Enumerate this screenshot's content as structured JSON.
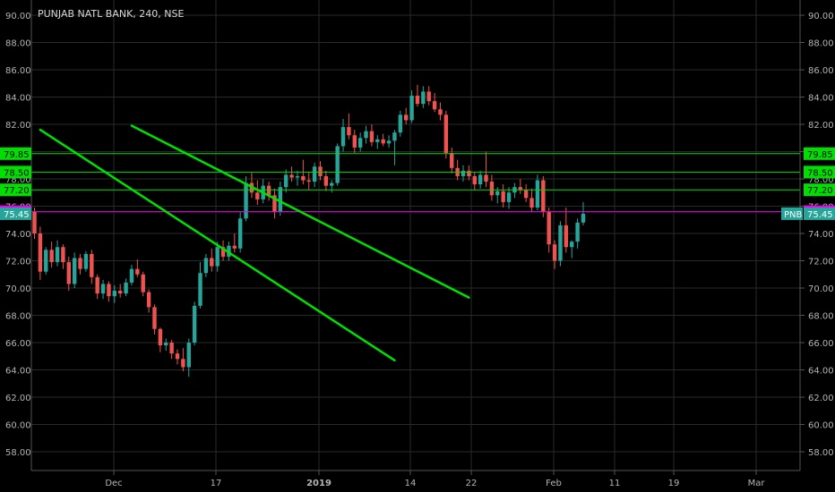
{
  "header": {
    "title": "PUNJAB NATL BANK, 240, NSE"
  },
  "y_axis": {
    "ticks": [
      "58.00",
      "60.00",
      "62.00",
      "64.00",
      "66.00",
      "68.00",
      "70.00",
      "72.00",
      "74.00",
      "76.00",
      "78.00",
      "80.00",
      "82.00",
      "84.00",
      "86.00",
      "88.00",
      "90.00"
    ]
  },
  "x_axis": {
    "labels": [
      "Dec",
      "17",
      "2019",
      "14",
      "22",
      "Feb",
      "11",
      "19",
      "Mar"
    ]
  },
  "levels": [
    {
      "value": 79.85,
      "label": "79.85",
      "color": "#00e000",
      "text_color": "#000000"
    },
    {
      "value": 78.5,
      "label": "78.50",
      "color": "#00e000",
      "text_color": "#000000"
    },
    {
      "value": 77.2,
      "label": "77.20",
      "color": "#00e000",
      "text_color": "#000000"
    },
    {
      "value": 75.6,
      "label": "75.60",
      "color": "#ee00ee",
      "text_color": "#000000"
    },
    {
      "value": 75.45,
      "label": "75.45",
      "color": "#26a69a",
      "text_color": "#ffffff"
    }
  ],
  "price_badge": {
    "symbol": "PNB",
    "value": "75.45",
    "color": "#26a69a"
  },
  "colors": {
    "up": "#26a69a",
    "down": "#ef5350",
    "channel": "#00e000",
    "grid": "#2a2a2a"
  },
  "chart_data": {
    "type": "candlestick",
    "title": "PUNJAB NATL BANK, 240, NSE",
    "ylim": [
      57,
      91
    ],
    "channel_lines": [
      {
        "from": {
          "x": 1,
          "y": 81.6
        },
        "to": {
          "x": 63,
          "y": 64.7
        }
      },
      {
        "from": {
          "x": 17,
          "y": 81.9
        },
        "to": {
          "x": 76,
          "y": 69.3
        }
      }
    ],
    "candles": [
      {
        "o": 75.6,
        "h": 75.9,
        "l": 73.6,
        "c": 74.0
      },
      {
        "o": 74.0,
        "h": 74.5,
        "l": 70.6,
        "c": 71.2
      },
      {
        "o": 71.2,
        "h": 73.0,
        "l": 71.0,
        "c": 72.8
      },
      {
        "o": 72.8,
        "h": 73.4,
        "l": 71.5,
        "c": 71.9
      },
      {
        "o": 71.9,
        "h": 73.5,
        "l": 71.6,
        "c": 73.0
      },
      {
        "o": 73.0,
        "h": 73.2,
        "l": 71.4,
        "c": 71.9
      },
      {
        "o": 71.9,
        "h": 72.3,
        "l": 69.8,
        "c": 70.3
      },
      {
        "o": 70.3,
        "h": 72.6,
        "l": 70.0,
        "c": 72.2
      },
      {
        "o": 72.2,
        "h": 72.5,
        "l": 71.0,
        "c": 71.4
      },
      {
        "o": 71.4,
        "h": 72.7,
        "l": 71.2,
        "c": 72.5
      },
      {
        "o": 72.5,
        "h": 72.8,
        "l": 70.3,
        "c": 70.8
      },
      {
        "o": 70.8,
        "h": 71.0,
        "l": 69.2,
        "c": 69.6
      },
      {
        "o": 69.6,
        "h": 70.6,
        "l": 69.2,
        "c": 70.3
      },
      {
        "o": 70.3,
        "h": 70.5,
        "l": 69.0,
        "c": 69.4
      },
      {
        "o": 69.4,
        "h": 70.2,
        "l": 68.9,
        "c": 69.8
      },
      {
        "o": 69.8,
        "h": 70.3,
        "l": 69.3,
        "c": 69.6
      },
      {
        "o": 69.6,
        "h": 70.7,
        "l": 69.4,
        "c": 70.4
      },
      {
        "o": 70.4,
        "h": 71.7,
        "l": 70.2,
        "c": 71.4
      },
      {
        "o": 71.4,
        "h": 72.1,
        "l": 70.8,
        "c": 71.0
      },
      {
        "o": 71.0,
        "h": 71.2,
        "l": 69.4,
        "c": 69.7
      },
      {
        "o": 69.7,
        "h": 69.9,
        "l": 68.2,
        "c": 68.6
      },
      {
        "o": 68.6,
        "h": 68.8,
        "l": 66.6,
        "c": 67.0
      },
      {
        "o": 67.0,
        "h": 67.1,
        "l": 65.3,
        "c": 65.8
      },
      {
        "o": 65.8,
        "h": 66.3,
        "l": 65.4,
        "c": 66.0
      },
      {
        "o": 66.0,
        "h": 66.2,
        "l": 64.8,
        "c": 65.2
      },
      {
        "o": 65.2,
        "h": 65.5,
        "l": 64.4,
        "c": 64.8
      },
      {
        "o": 64.8,
        "h": 65.6,
        "l": 63.9,
        "c": 64.2
      },
      {
        "o": 64.2,
        "h": 66.3,
        "l": 63.5,
        "c": 66.0
      },
      {
        "o": 66.0,
        "h": 69.0,
        "l": 65.8,
        "c": 68.7
      },
      {
        "o": 68.7,
        "h": 71.9,
        "l": 68.5,
        "c": 71.1
      },
      {
        "o": 71.1,
        "h": 72.5,
        "l": 70.8,
        "c": 72.2
      },
      {
        "o": 72.2,
        "h": 72.9,
        "l": 71.2,
        "c": 71.6
      },
      {
        "o": 71.6,
        "h": 73.4,
        "l": 71.2,
        "c": 73.0
      },
      {
        "o": 73.0,
        "h": 73.5,
        "l": 72.0,
        "c": 72.3
      },
      {
        "o": 72.3,
        "h": 73.4,
        "l": 72.0,
        "c": 73.1
      },
      {
        "o": 73.1,
        "h": 74.0,
        "l": 72.6,
        "c": 72.9
      },
      {
        "o": 72.9,
        "h": 75.6,
        "l": 72.6,
        "c": 75.1
      },
      {
        "o": 75.1,
        "h": 78.2,
        "l": 74.9,
        "c": 77.7
      },
      {
        "o": 77.7,
        "h": 78.5,
        "l": 76.6,
        "c": 77.0
      },
      {
        "o": 77.0,
        "h": 77.9,
        "l": 76.1,
        "c": 76.5
      },
      {
        "o": 76.5,
        "h": 78.0,
        "l": 76.2,
        "c": 77.5
      },
      {
        "o": 77.5,
        "h": 77.8,
        "l": 76.4,
        "c": 76.8
      },
      {
        "o": 76.8,
        "h": 77.3,
        "l": 75.1,
        "c": 75.6
      },
      {
        "o": 75.6,
        "h": 77.8,
        "l": 75.3,
        "c": 77.4
      },
      {
        "o": 77.4,
        "h": 78.7,
        "l": 77.0,
        "c": 78.3
      },
      {
        "o": 78.3,
        "h": 78.9,
        "l": 77.8,
        "c": 78.1
      },
      {
        "o": 78.1,
        "h": 78.6,
        "l": 77.5,
        "c": 78.2
      },
      {
        "o": 78.2,
        "h": 79.4,
        "l": 77.6,
        "c": 77.9
      },
      {
        "o": 77.9,
        "h": 78.5,
        "l": 77.2,
        "c": 77.8
      },
      {
        "o": 77.8,
        "h": 79.2,
        "l": 77.4,
        "c": 78.9
      },
      {
        "o": 78.9,
        "h": 79.3,
        "l": 77.9,
        "c": 78.2
      },
      {
        "o": 78.2,
        "h": 78.6,
        "l": 77.1,
        "c": 77.5
      },
      {
        "o": 77.5,
        "h": 77.9,
        "l": 77.0,
        "c": 77.7
      },
      {
        "o": 77.7,
        "h": 80.6,
        "l": 77.5,
        "c": 80.4
      },
      {
        "o": 80.4,
        "h": 82.4,
        "l": 80.0,
        "c": 81.8
      },
      {
        "o": 81.8,
        "h": 82.8,
        "l": 80.9,
        "c": 81.2
      },
      {
        "o": 81.2,
        "h": 81.6,
        "l": 79.9,
        "c": 80.3
      },
      {
        "o": 80.3,
        "h": 81.4,
        "l": 80.0,
        "c": 81.0
      },
      {
        "o": 81.0,
        "h": 81.9,
        "l": 80.6,
        "c": 81.5
      },
      {
        "o": 81.5,
        "h": 82.0,
        "l": 80.4,
        "c": 80.7
      },
      {
        "o": 80.7,
        "h": 81.2,
        "l": 80.2,
        "c": 80.9
      },
      {
        "o": 80.9,
        "h": 81.3,
        "l": 80.4,
        "c": 80.6
      },
      {
        "o": 80.6,
        "h": 81.2,
        "l": 80.3,
        "c": 80.8
      },
      {
        "o": 80.8,
        "h": 81.6,
        "l": 79.0,
        "c": 81.4
      },
      {
        "o": 81.4,
        "h": 83.0,
        "l": 81.1,
        "c": 82.7
      },
      {
        "o": 82.7,
        "h": 83.2,
        "l": 82.0,
        "c": 82.3
      },
      {
        "o": 82.3,
        "h": 84.5,
        "l": 82.1,
        "c": 84.1
      },
      {
        "o": 84.1,
        "h": 84.9,
        "l": 83.3,
        "c": 83.5
      },
      {
        "o": 83.5,
        "h": 84.8,
        "l": 83.2,
        "c": 84.4
      },
      {
        "o": 84.4,
        "h": 84.8,
        "l": 83.4,
        "c": 83.7
      },
      {
        "o": 83.7,
        "h": 84.3,
        "l": 82.9,
        "c": 83.1
      },
      {
        "o": 83.1,
        "h": 83.6,
        "l": 82.3,
        "c": 82.7
      },
      {
        "o": 82.7,
        "h": 83.0,
        "l": 79.5,
        "c": 79.9
      },
      {
        "o": 79.9,
        "h": 80.3,
        "l": 78.4,
        "c": 78.8
      },
      {
        "o": 78.8,
        "h": 79.4,
        "l": 77.9,
        "c": 78.2
      },
      {
        "o": 78.2,
        "h": 79.0,
        "l": 77.8,
        "c": 78.6
      },
      {
        "o": 78.6,
        "h": 79.0,
        "l": 77.9,
        "c": 78.2
      },
      {
        "o": 78.2,
        "h": 78.5,
        "l": 77.2,
        "c": 77.6
      },
      {
        "o": 77.6,
        "h": 78.6,
        "l": 77.3,
        "c": 78.3
      },
      {
        "o": 78.3,
        "h": 80.0,
        "l": 77.4,
        "c": 77.8
      },
      {
        "o": 77.8,
        "h": 78.3,
        "l": 76.4,
        "c": 76.8
      },
      {
        "o": 76.8,
        "h": 77.4,
        "l": 76.2,
        "c": 77.1
      },
      {
        "o": 77.1,
        "h": 77.6,
        "l": 75.9,
        "c": 76.3
      },
      {
        "o": 76.3,
        "h": 77.4,
        "l": 75.8,
        "c": 77.0
      },
      {
        "o": 77.0,
        "h": 77.7,
        "l": 76.6,
        "c": 77.4
      },
      {
        "o": 77.4,
        "h": 78.0,
        "l": 76.9,
        "c": 77.2
      },
      {
        "o": 77.2,
        "h": 77.6,
        "l": 76.3,
        "c": 76.6
      },
      {
        "o": 76.6,
        "h": 77.3,
        "l": 75.6,
        "c": 75.9
      },
      {
        "o": 75.9,
        "h": 78.3,
        "l": 75.7,
        "c": 77.9
      },
      {
        "o": 77.9,
        "h": 78.2,
        "l": 75.2,
        "c": 75.6
      },
      {
        "o": 75.6,
        "h": 75.9,
        "l": 72.6,
        "c": 73.2
      },
      {
        "o": 73.2,
        "h": 73.5,
        "l": 71.4,
        "c": 72.0
      },
      {
        "o": 72.0,
        "h": 74.9,
        "l": 71.6,
        "c": 74.6
      },
      {
        "o": 74.6,
        "h": 75.9,
        "l": 72.6,
        "c": 73.0
      },
      {
        "o": 73.0,
        "h": 73.5,
        "l": 72.2,
        "c": 73.4
      },
      {
        "o": 73.4,
        "h": 75.1,
        "l": 72.9,
        "c": 74.8
      },
      {
        "o": 74.8,
        "h": 76.3,
        "l": 74.6,
        "c": 75.45
      }
    ]
  }
}
